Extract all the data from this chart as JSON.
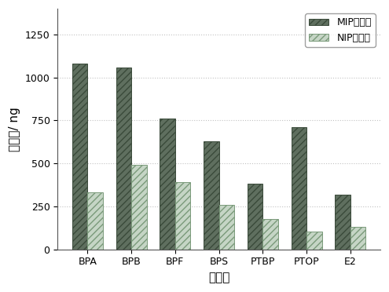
{
  "categories": [
    "BPA",
    "BPB",
    "BPF",
    "BPS",
    "PTBP",
    "PTOP",
    "E2"
  ],
  "mip_values": [
    1080,
    1060,
    760,
    630,
    380,
    710,
    320
  ],
  "nip_values": [
    330,
    490,
    390,
    260,
    175,
    105,
    130
  ],
  "mip_color": "#5a6a5a",
  "nip_color": "#c8d4c8",
  "ylabel": "萍取量/ ng",
  "xlabel": "分析物",
  "ylim": [
    0,
    1400
  ],
  "yticks": [
    0,
    250,
    500,
    750,
    1000,
    1250
  ],
  "legend_labels": [
    "MIP棒萍取",
    "NIP棒萍取"
  ],
  "bar_width": 0.35,
  "grid_color": "#bbbbbb",
  "background_color": "#ffffff"
}
